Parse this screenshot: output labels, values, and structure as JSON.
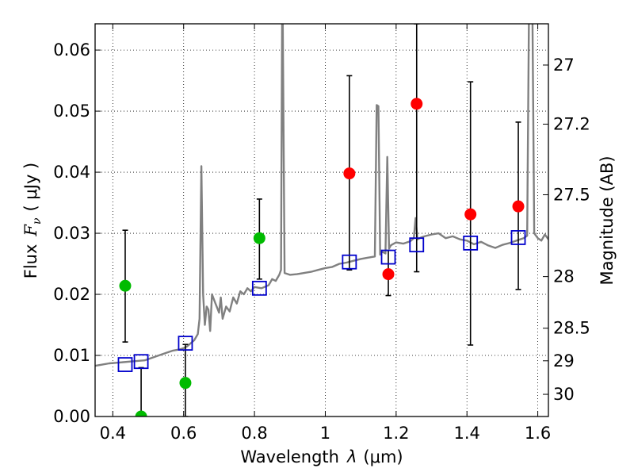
{
  "chart_data": {
    "type": "scatter",
    "xlabel_text": "Wavelength",
    "xlabel_symbol": "λ",
    "xlabel_unit": "(μm)",
    "ylabel_text": "Flux",
    "ylabel_symbol_main": "F",
    "ylabel_symbol_sub": "ν",
    "ylabel_unit": "( μJy )",
    "y2label": "Magnitude (AB)",
    "xlim": [
      0.35,
      1.63
    ],
    "ylim": [
      0.0,
      0.0643
    ],
    "x_ticks": [
      0.4,
      0.6,
      0.8,
      1.0,
      1.2,
      1.4,
      1.6
    ],
    "x_tick_labels": [
      "0.4",
      "0.6",
      "0.8",
      "1",
      "1.2",
      "1.4",
      "1.6"
    ],
    "y_ticks": [
      0.0,
      0.01,
      0.02,
      0.03,
      0.04,
      0.05,
      0.06
    ],
    "y_tick_labels": [
      "0.00",
      "0.01",
      "0.02",
      "0.03",
      "0.04",
      "0.05",
      "0.06"
    ],
    "y2_ticks": [
      {
        "mag": 27,
        "label": "27"
      },
      {
        "mag": 27.2,
        "label": "27.2"
      },
      {
        "mag": 27.5,
        "label": "27.5"
      },
      {
        "mag": 28,
        "label": "28"
      },
      {
        "mag": 28.5,
        "label": "28.5"
      },
      {
        "mag": 29,
        "label": "29"
      },
      {
        "mag": 30,
        "label": "30"
      }
    ],
    "grid": true,
    "colors": {
      "observed_hst": "#00bb00",
      "observed_ir": "#ff0000",
      "model": "#0000cc",
      "spectrum": "#808080",
      "errorbar": "#000000"
    },
    "series": [
      {
        "name": "observed_green",
        "color": "#00bb00",
        "points": [
          {
            "x": 0.435,
            "y": 0.0214,
            "ylo": 0.0122,
            "yhi": 0.0305
          },
          {
            "x": 0.48,
            "y": 0.0,
            "ylo": 0.0,
            "yhi": 0.008
          },
          {
            "x": 0.605,
            "y": 0.0055,
            "ylo": 0.0,
            "yhi": 0.0118
          },
          {
            "x": 0.814,
            "y": 0.0292,
            "ylo": 0.0225,
            "yhi": 0.0356
          }
        ]
      },
      {
        "name": "observed_red",
        "color": "#ff0000",
        "points": [
          {
            "x": 1.068,
            "y": 0.0398,
            "ylo": 0.024,
            "yhi": 0.0558
          },
          {
            "x": 1.178,
            "y": 0.0233,
            "ylo": 0.0198,
            "yhi": 0.0272
          },
          {
            "x": 1.258,
            "y": 0.0512,
            "ylo": 0.0237,
            "yhi": 0.0643
          },
          {
            "x": 1.41,
            "y": 0.0331,
            "ylo": 0.0117,
            "yhi": 0.0548
          },
          {
            "x": 1.545,
            "y": 0.0344,
            "ylo": 0.0208,
            "yhi": 0.0482
          }
        ]
      },
      {
        "name": "model_photometry",
        "color": "#0000cc",
        "points": [
          {
            "x": 0.435,
            "y": 0.0085
          },
          {
            "x": 0.48,
            "y": 0.009
          },
          {
            "x": 0.605,
            "y": 0.012
          },
          {
            "x": 0.814,
            "y": 0.021
          },
          {
            "x": 1.068,
            "y": 0.0253
          },
          {
            "x": 1.178,
            "y": 0.0261
          },
          {
            "x": 1.258,
            "y": 0.0281
          },
          {
            "x": 1.41,
            "y": 0.0284
          },
          {
            "x": 1.545,
            "y": 0.0293
          }
        ]
      }
    ],
    "spectrum": {
      "name": "model_spectrum",
      "x": [
        0.35,
        0.37,
        0.39,
        0.41,
        0.43,
        0.45,
        0.47,
        0.49,
        0.51,
        0.53,
        0.55,
        0.57,
        0.59,
        0.6,
        0.61,
        0.62,
        0.63,
        0.64,
        0.645,
        0.65,
        0.655,
        0.66,
        0.665,
        0.67,
        0.675,
        0.68,
        0.69,
        0.7,
        0.705,
        0.71,
        0.72,
        0.73,
        0.74,
        0.75,
        0.76,
        0.77,
        0.78,
        0.79,
        0.8,
        0.82,
        0.84,
        0.85,
        0.86,
        0.87,
        0.875,
        0.878,
        0.88,
        0.885,
        0.89,
        0.9,
        0.92,
        0.94,
        0.96,
        0.98,
        1.0,
        1.02,
        1.04,
        1.06,
        1.08,
        1.1,
        1.12,
        1.14,
        1.145,
        1.15,
        1.155,
        1.16,
        1.17,
        1.175,
        1.18,
        1.185,
        1.19,
        1.2,
        1.22,
        1.24,
        1.25,
        1.255,
        1.26,
        1.27,
        1.28,
        1.3,
        1.32,
        1.34,
        1.36,
        1.38,
        1.4,
        1.42,
        1.44,
        1.46,
        1.48,
        1.5,
        1.52,
        1.54,
        1.56,
        1.57,
        1.575,
        1.58,
        1.585,
        1.59,
        1.6,
        1.61,
        1.62,
        1.63
      ],
      "y": [
        0.0083,
        0.0085,
        0.0087,
        0.0088,
        0.0089,
        0.009,
        0.0091,
        0.0092,
        0.0096,
        0.01,
        0.0104,
        0.0108,
        0.011,
        0.0112,
        0.0115,
        0.012,
        0.0125,
        0.0135,
        0.016,
        0.041,
        0.02,
        0.015,
        0.018,
        0.0175,
        0.014,
        0.02,
        0.0185,
        0.017,
        0.0195,
        0.016,
        0.018,
        0.0172,
        0.0195,
        0.0185,
        0.0205,
        0.02,
        0.021,
        0.0205,
        0.0212,
        0.021,
        0.0215,
        0.0225,
        0.0222,
        0.0232,
        0.024,
        0.065,
        0.0645,
        0.0235,
        0.0234,
        0.0232,
        0.0233,
        0.0235,
        0.0237,
        0.024,
        0.0243,
        0.0245,
        0.025,
        0.0252,
        0.0255,
        0.0258,
        0.026,
        0.0262,
        0.051,
        0.0508,
        0.0265,
        0.027,
        0.0267,
        0.0425,
        0.0275,
        0.028,
        0.0282,
        0.0285,
        0.0283,
        0.0287,
        0.0292,
        0.0325,
        0.029,
        0.0293,
        0.0295,
        0.0298,
        0.03,
        0.0292,
        0.0295,
        0.029,
        0.0288,
        0.0282,
        0.0286,
        0.028,
        0.0276,
        0.0281,
        0.0284,
        0.0288,
        0.0292,
        0.0296,
        0.065,
        0.065,
        0.065,
        0.03,
        0.0292,
        0.0288,
        0.0298,
        0.029
      ]
    }
  }
}
